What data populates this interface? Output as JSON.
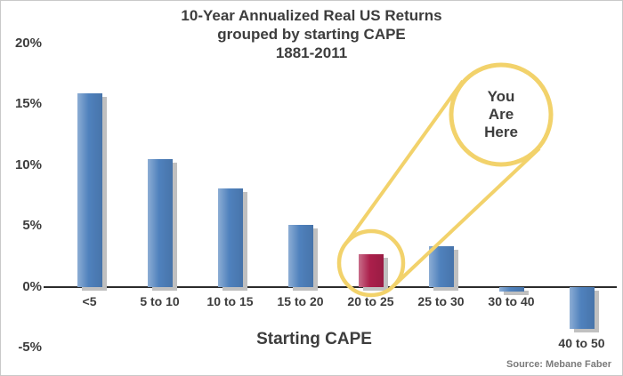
{
  "chart_data": {
    "type": "bar",
    "title": "10-Year Annualized Real US Returns grouped by starting CAPE 1881-2011",
    "title_lines": [
      "10-Year Annualized Real US Returns",
      "grouped by starting CAPE",
      "1881-2011"
    ],
    "categories": [
      "<5",
      "5 to 10",
      "10 to 15",
      "15 to 20",
      "20 to 25",
      "25 to 30",
      "30 to 40",
      "40 to 50"
    ],
    "values": [
      15.9,
      10.5,
      8.1,
      5.1,
      2.7,
      3.3,
      -0.4,
      -3.5
    ],
    "highlight_index": 4,
    "xlabel": "Starting CAPE",
    "ylabel": "",
    "ylim": [
      -5,
      20
    ],
    "yticks": [
      "20%",
      "15%",
      "10%",
      "5%",
      "0%",
      "-5%"
    ],
    "ytick_values": [
      20,
      15,
      10,
      5,
      0,
      -5
    ],
    "grid": false,
    "legend": "none",
    "bar_color": "#4f81bd",
    "highlight_color": "#ab1f4b",
    "shadow_color": "#c0c0c0",
    "axis_color": "#2b2b2b"
  },
  "annotation": {
    "text": "You Are Here",
    "lines": [
      "You",
      "Are",
      "Here"
    ],
    "circle_color": "#f2d26b",
    "target_category": "20 to 25"
  },
  "source": "Source: Mebane Faber"
}
